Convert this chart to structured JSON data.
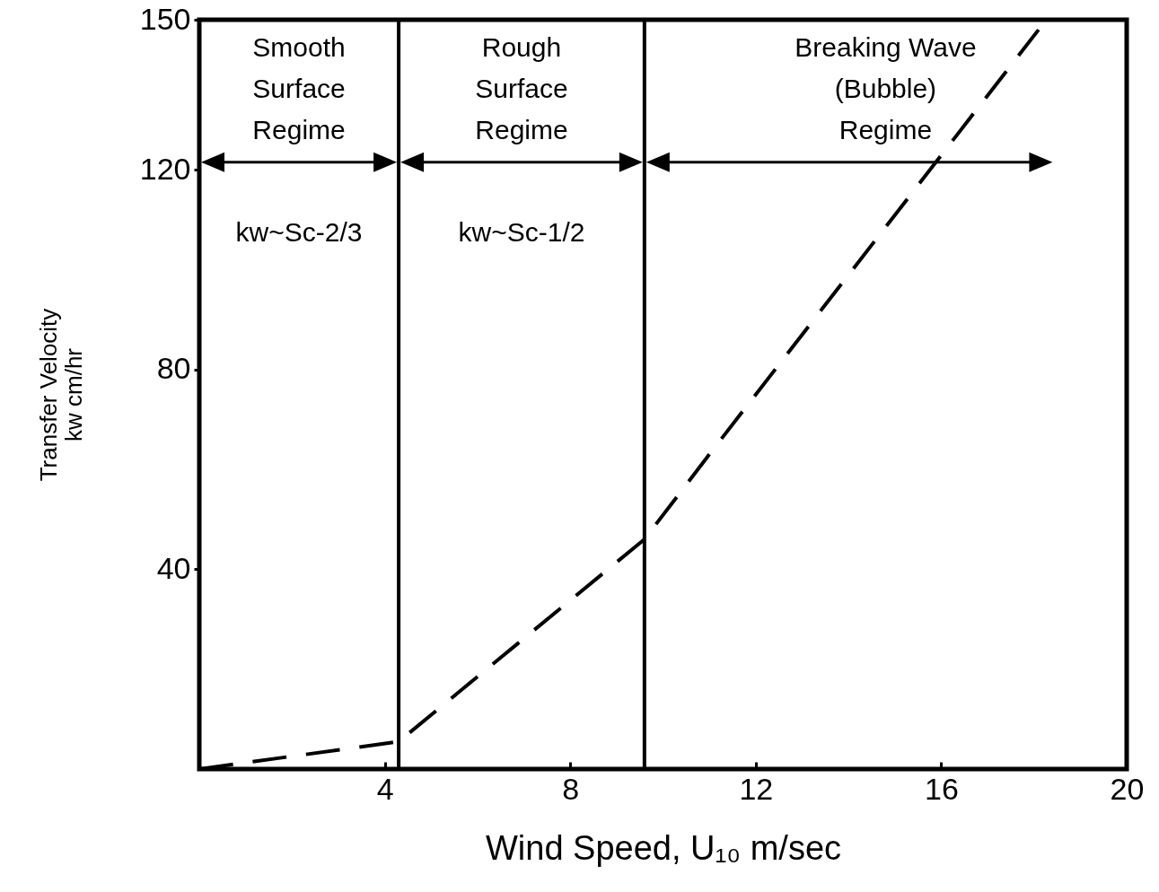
{
  "chart_data": {
    "type": "line",
    "xlabel": "Wind Speed, U₁₀ m/sec",
    "ylabel": "Transfer Velocity\nkw cm/hr",
    "x": [
      0,
      4.3,
      9.6,
      11,
      18.1
    ],
    "series": [
      {
        "color": "#000000",
        "values": [
          0,
          5.5,
          46,
          63,
          148
        ]
      }
    ],
    "line_style": "dashed",
    "marker": "none",
    "xlim": [
      0,
      20
    ],
    "ylim": [
      0,
      150
    ],
    "xticks": [
      4,
      8,
      12,
      16,
      20
    ],
    "yticks": [
      40,
      80,
      120,
      150
    ],
    "ref_lines": [
      {
        "axis": "x",
        "value": 4.3,
        "color": "#000000"
      },
      {
        "axis": "x",
        "value": 9.6,
        "color": "#000000"
      }
    ],
    "annotations": [
      "Smooth\nSurface\nRegime",
      "Rough\nSurface\nRegime",
      "Breaking Wave\n(Bubble)\nRegime",
      "kw~Sc-2/3",
      "kw~Sc-1/2"
    ]
  }
}
